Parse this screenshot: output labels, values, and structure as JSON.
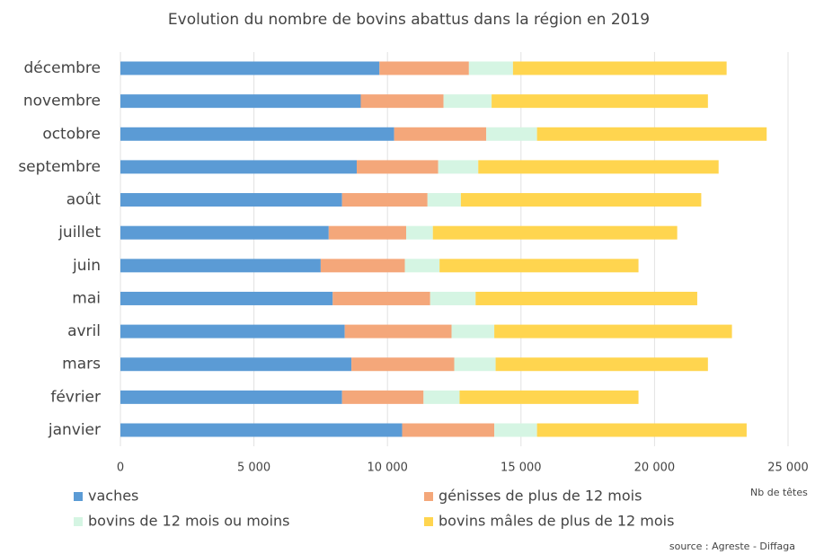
{
  "chart_data": {
    "type": "stacked-barh",
    "title": "Evolution du nombre de bovins abattus dans la région en 2019",
    "categories": [
      "janvier",
      "février",
      "mars",
      "avril",
      "mai",
      "juin",
      "juillet",
      "août",
      "septembre",
      "octobre",
      "novembre",
      "décembre"
    ],
    "series": [
      {
        "name": "vaches",
        "color": "#5b9bd5",
        "values": [
          10550,
          8300,
          8650,
          8400,
          7950,
          7500,
          7800,
          8300,
          8850,
          10250,
          9000,
          9700
        ]
      },
      {
        "name": "génisses de plus de 12 mois",
        "color": "#f4a77a",
        "values": [
          3450,
          3050,
          3850,
          4000,
          3650,
          3150,
          2900,
          3200,
          3050,
          3450,
          3100,
          3350
        ]
      },
      {
        "name": "bovins de 12 mois ou moins",
        "color": "#d5f5e3",
        "values": [
          1600,
          1350,
          1550,
          1600,
          1700,
          1300,
          1000,
          1250,
          1500,
          1900,
          1800,
          1650
        ]
      },
      {
        "name": "bovins mâles de plus de 12 mois",
        "color": "#ffd54f",
        "values": [
          7850,
          6700,
          7950,
          8900,
          8300,
          7450,
          9150,
          9000,
          9000,
          8600,
          8100,
          8000
        ]
      }
    ],
    "xlim": [
      0,
      25000
    ],
    "xticks": [
      0,
      {
        "value": 5000,
        "label": "5 000"
      },
      {
        "value": 10000,
        "label": "10 000"
      },
      {
        "value": 15000,
        "label": "15 000"
      },
      {
        "value": 20000,
        "label": "20 000"
      },
      {
        "value": 25000,
        "label": "25 000"
      }
    ],
    "xlabel": "Nb de têtes",
    "source": "source : Agreste - Diffaga",
    "grid": true,
    "legend": "bottom"
  }
}
